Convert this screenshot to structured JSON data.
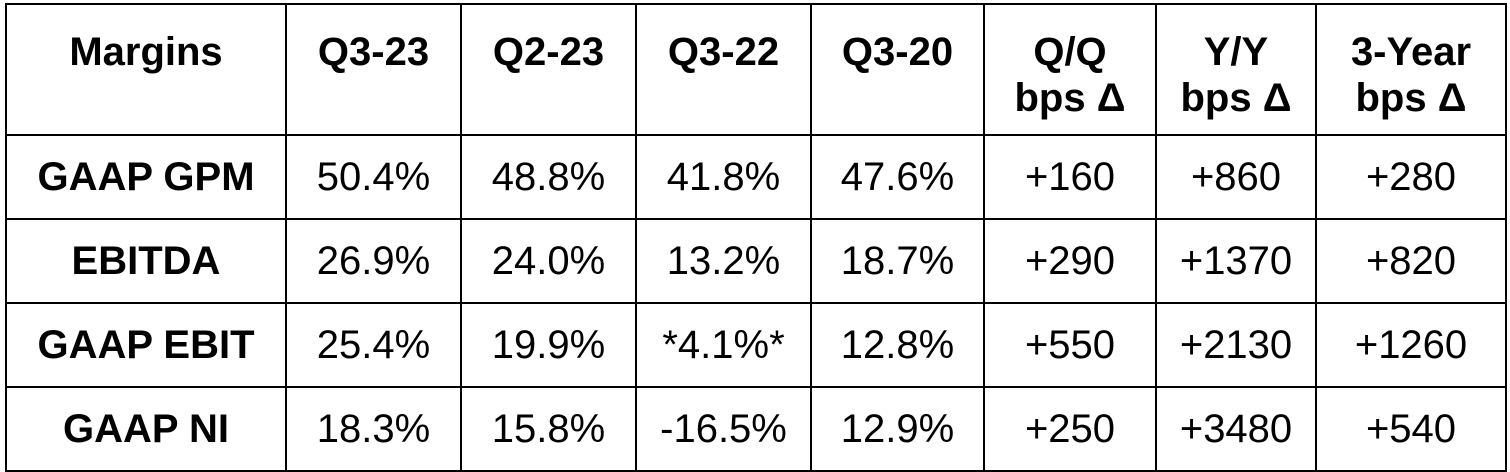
{
  "table": {
    "headers": [
      [
        "Margins"
      ],
      [
        "Q3-23"
      ],
      [
        "Q2-23"
      ],
      [
        "Q3-22"
      ],
      [
        "Q3-20"
      ],
      [
        "Q/Q",
        "bps Δ"
      ],
      [
        "Y/Y",
        "bps Δ"
      ],
      [
        "3-Year",
        "bps Δ"
      ]
    ],
    "rows": [
      [
        "GAAP GPM",
        "50.4%",
        "48.8%",
        "41.8%",
        "47.6%",
        "+160",
        "+860",
        "+280"
      ],
      [
        "EBITDA",
        "26.9%",
        "24.0%",
        "13.2%",
        "18.7%",
        "+290",
        "+1370",
        "+820"
      ],
      [
        "GAAP EBIT",
        "25.4%",
        "19.9%",
        "*4.1%*",
        "12.8%",
        "+550",
        "+2130",
        "+1260"
      ],
      [
        "GAAP NI",
        "18.3%",
        "15.8%",
        "-16.5%",
        "12.9%",
        "+250",
        "+3480",
        "+540"
      ]
    ]
  }
}
